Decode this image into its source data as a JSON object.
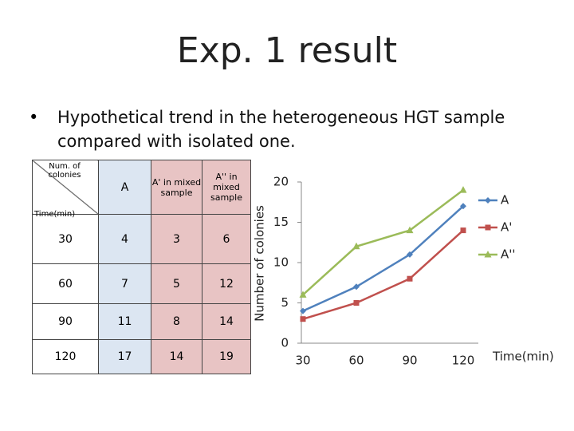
{
  "title": "Exp. 1 result",
  "bullet": "Hypothetical trend in the heterogeneous HGT sample compared with isolated one.",
  "table": {
    "corner_top": "Num. of colonies",
    "corner_bottom": "Time(min)",
    "headers": [
      "A",
      "A' in mixed sample",
      "A'' in mixed sample"
    ],
    "rows": [
      [
        "30",
        "4",
        "3",
        "6"
      ],
      [
        "60",
        "7",
        "5",
        "12"
      ],
      [
        "90",
        "11",
        "8",
        "14"
      ],
      [
        "120",
        "17",
        "14",
        "19"
      ]
    ]
  },
  "chart_data": {
    "type": "line",
    "ylabel": "Number of colonies",
    "xlabel": "Time(min)",
    "categories": [
      "30",
      "60",
      "90",
      "120"
    ],
    "series": [
      {
        "name": "A",
        "color": "#4f81bd",
        "marker": "diamond",
        "values": [
          4,
          7,
          11,
          17
        ]
      },
      {
        "name": "A'",
        "color": "#c0504d",
        "marker": "square",
        "values": [
          3,
          5,
          8,
          14
        ]
      },
      {
        "name": "A''",
        "color": "#9bbb59",
        "marker": "triangle",
        "values": [
          6,
          12,
          14,
          19
        ]
      }
    ],
    "ylim": [
      0,
      20
    ],
    "yticks": [
      0,
      5,
      10,
      15,
      20
    ],
    "legend": "right"
  }
}
